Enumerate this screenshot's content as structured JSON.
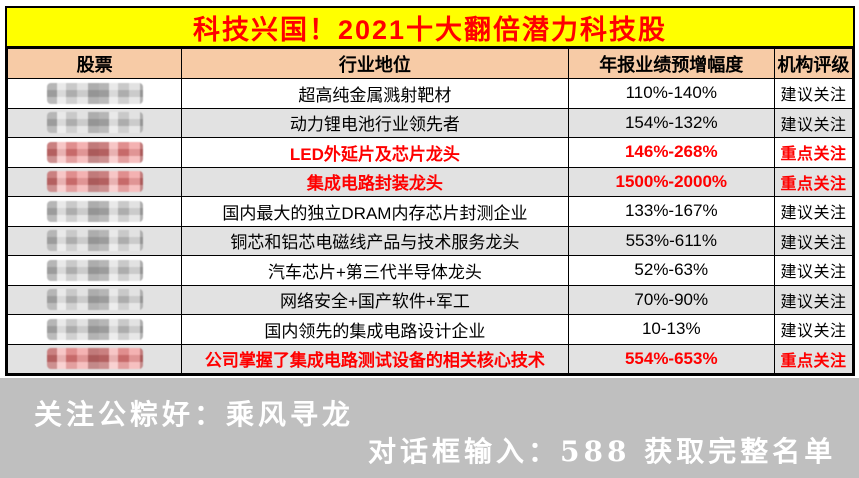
{
  "title": "科技兴国！2021十大翻倍潜力科技股",
  "colors": {
    "title_bg": "#FFFF00",
    "title_text": "#FF0000",
    "header_bg": "#F7CBA6",
    "row_alt_bg": "#E2E2E2",
    "highlight_text": "#FF0000",
    "footer_bg": "#BFBFBF",
    "border": "#000000"
  },
  "table": {
    "headers": [
      "股票",
      "行业地位",
      "年报业绩预增幅度",
      "机构评级"
    ],
    "rows": [
      {
        "stock_censored": true,
        "position": "超高纯金属溅射靶材",
        "growth": "110%-140%",
        "rating": "建议关注",
        "highlight": false
      },
      {
        "stock_censored": true,
        "position": "动力锂电池行业领先者",
        "growth": "154%-132%",
        "rating": "建议关注",
        "highlight": false
      },
      {
        "stock_censored": true,
        "position": "LED外延片及芯片龙头",
        "growth": "146%-268%",
        "rating": "重点关注",
        "highlight": true
      },
      {
        "stock_censored": true,
        "position": "集成电路封装龙头",
        "growth": "1500%-2000%",
        "rating": "重点关注",
        "highlight": true
      },
      {
        "stock_censored": true,
        "position": "国内最大的独立DRAM内存芯片封测企业",
        "growth": "133%-167%",
        "rating": "建议关注",
        "highlight": false
      },
      {
        "stock_censored": true,
        "position": "铜芯和铝芯电磁线产品与技术服务龙头",
        "growth": "553%-611%",
        "rating": "建议关注",
        "highlight": false
      },
      {
        "stock_censored": true,
        "position": "汽车芯片+第三代半导体龙头",
        "growth": "52%-63%",
        "rating": "建议关注",
        "highlight": false
      },
      {
        "stock_censored": true,
        "position": "网络安全+国产软件+军工",
        "growth": "70%-90%",
        "rating": "建议关注",
        "highlight": false
      },
      {
        "stock_censored": true,
        "position": "国内领先的集成电路设计企业",
        "growth": "10-13%",
        "rating": "建议关注",
        "highlight": false
      },
      {
        "stock_censored": true,
        "position": "公司掌握了集成电路测试设备的相关核心技术",
        "growth": "554%-653%",
        "rating": "重点关注",
        "highlight": true
      }
    ]
  },
  "footer": {
    "line1": "关注公粽好：乘风寻龙",
    "line2": "对话框输入：588 获取完整名单"
  }
}
